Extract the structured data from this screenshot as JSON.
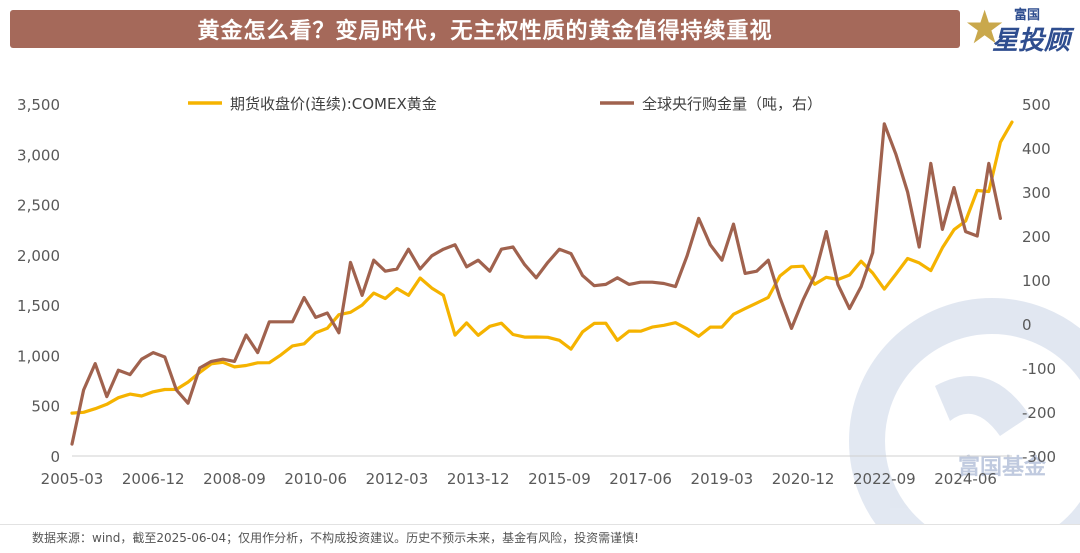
{
  "header": {
    "title": "黄金怎么看？变局时代，无主权性质的黄金值得持续重视"
  },
  "logo": {
    "top_text": "富国",
    "bottom_text": "星投顾",
    "watermark_text": "富国基金"
  },
  "footer": {
    "note": "数据来源：wind，截至2025-06-04；仅用作分析，不构成投资建议。历史不预示未来，基金有风险，投资需谨慎!"
  },
  "colors": {
    "gold_series": "#f5b300",
    "cb_series": "#a0624e",
    "title_bg": "#a5695a"
  },
  "chart_data": {
    "type": "line",
    "title": "",
    "legend_position": "top",
    "x_tick_labels": [
      "2005-03",
      "2006-12",
      "2008-09",
      "2010-06",
      "2012-03",
      "2013-12",
      "2015-09",
      "2017-06",
      "2019-03",
      "2020-12",
      "2022-09",
      "2024-06"
    ],
    "y_left": {
      "min": 0,
      "max": 3500,
      "ticks": [
        "0",
        "500",
        "1,000",
        "1,500",
        "2,000",
        "2,500",
        "3,000",
        "3,500"
      ]
    },
    "y_right": {
      "min": -300,
      "max": 500,
      "ticks": [
        "-300",
        "-200",
        "-100",
        "0",
        "100",
        "200",
        "300",
        "400",
        "500"
      ]
    },
    "series": [
      {
        "name": "期货收盘价(连续):COMEX黄金",
        "axis": "left",
        "start": "2005-03",
        "step": "quarter",
        "values": [
          427,
          435,
          470,
          514,
          580,
          615,
          597,
          638,
          661,
          662,
          735,
          830,
          917,
          932,
          886,
          900,
          927,
          928,
          1005,
          1095,
          1116,
          1226,
          1270,
          1405,
          1429,
          1500,
          1620,
          1566,
          1665,
          1598,
          1770,
          1669,
          1598,
          1202,
          1323,
          1200,
          1290,
          1320,
          1208,
          1182,
          1183,
          1180,
          1150,
          1063,
          1235,
          1318,
          1320,
          1150,
          1242,
          1241,
          1282,
          1300,
          1325,
          1265,
          1190,
          1282,
          1282,
          1409,
          1466,
          1520,
          1577,
          1790,
          1881,
          1887,
          1708,
          1777,
          1755,
          1800,
          1937,
          1820,
          1660,
          1810,
          1964,
          1920,
          1843,
          2070,
          2250,
          2337,
          2640,
          2630,
          3120,
          3320
        ]
      },
      {
        "name": "全球央行购金量（吨，右）",
        "axis": "right",
        "start": "2005-03",
        "step": "quarter",
        "values": [
          -273,
          -150,
          -90,
          -165,
          -105,
          -115,
          -80,
          -65,
          -75,
          -150,
          -180,
          -100,
          -85,
          -80,
          -85,
          -25,
          -65,
          5,
          5,
          5,
          60,
          15,
          25,
          -20,
          140,
          65,
          145,
          120,
          125,
          170,
          125,
          155,
          170,
          180,
          130,
          145,
          120,
          170,
          175,
          135,
          105,
          140,
          170,
          160,
          110,
          87,
          90,
          105,
          90,
          95,
          95,
          92,
          85,
          155,
          240,
          180,
          145,
          227,
          115,
          120,
          145,
          60,
          -10,
          55,
          110,
          210,
          90,
          35,
          85,
          162,
          455,
          385,
          300,
          175,
          365,
          215,
          310,
          210,
          200,
          365,
          240
        ]
      }
    ]
  }
}
